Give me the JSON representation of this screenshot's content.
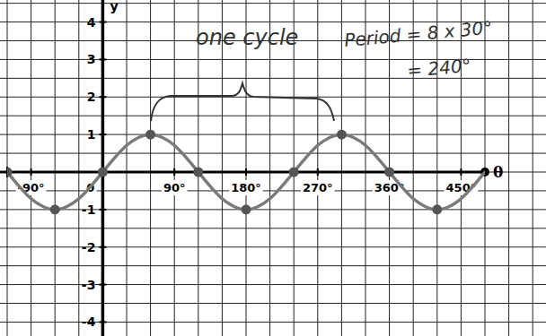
{
  "chart_data": {
    "type": "line",
    "xlabel": "θ",
    "ylabel": "y",
    "xlim": [
      -120,
      480
    ],
    "ylim": [
      -4.3,
      4.3
    ],
    "xticks": [
      {
        "value": -90,
        "label": "-90°"
      },
      0,
      {
        "value": 90,
        "label": "90°"
      },
      {
        "value": 180,
        "label": "180°"
      },
      {
        "value": 270,
        "label": "270°"
      },
      {
        "value": 360,
        "label": "360°"
      },
      {
        "value": 450,
        "label": "450°"
      }
    ],
    "yticks": [
      4,
      3,
      2,
      1,
      -1,
      -2,
      -3,
      -4
    ],
    "grid": true,
    "series": [
      {
        "type": "line",
        "color": "#7a7a7a",
        "x": [
          -120,
          -105,
          -90,
          -75,
          -60,
          -45,
          -30,
          -15,
          0,
          15,
          30,
          45,
          60,
          75,
          90,
          105,
          120,
          135,
          150,
          165,
          180,
          195,
          210,
          225,
          240,
          255,
          270,
          285,
          300,
          315,
          330,
          345,
          360,
          375,
          390,
          405,
          420,
          435,
          450,
          465,
          480
        ],
        "values": [
          0,
          -0.38,
          -0.71,
          -0.92,
          -1,
          -0.92,
          -0.71,
          -0.38,
          0,
          0.38,
          0.71,
          0.92,
          1,
          0.92,
          0.71,
          0.38,
          0,
          -0.38,
          -0.71,
          -0.92,
          -1,
          -0.92,
          -0.71,
          -0.38,
          0,
          0.38,
          0.71,
          0.92,
          1,
          0.92,
          0.71,
          0.38,
          0,
          -0.38,
          -0.71,
          -0.92,
          -1,
          -0.92,
          -0.71,
          -0.38,
          0
        ]
      },
      {
        "type": "scatter",
        "color": "#555555",
        "marker": "circle",
        "x": [
          -120,
          -60,
          0,
          60,
          120,
          180,
          240,
          300,
          360,
          420
        ],
        "values": [
          0,
          -1,
          0,
          1,
          0,
          -1,
          0,
          1,
          0,
          -1
        ]
      }
    ],
    "annotations": [
      {
        "text": "one cycle"
      },
      {
        "text": "Period = 8 x 30°"
      },
      {
        "text": "= 240°"
      }
    ]
  }
}
